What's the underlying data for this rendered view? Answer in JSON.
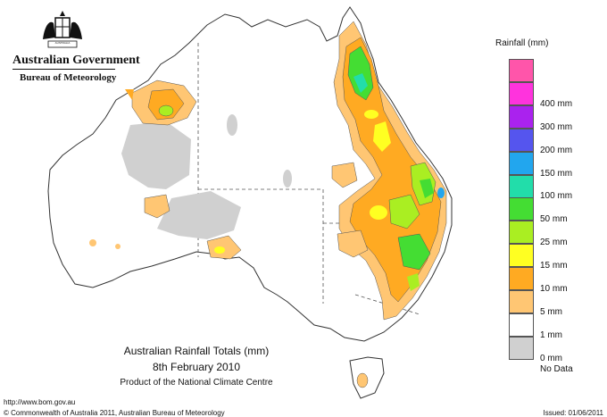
{
  "header": {
    "government": "Australian Government",
    "bureau": "Bureau of Meteorology",
    "crest_lettering": "AUSTRALIA"
  },
  "map_title": {
    "line1": "Australian Rainfall Totals (mm)",
    "line2": "8th February 2010",
    "line3": "Product of the National Climate Centre"
  },
  "legend": {
    "title": "Rainfall (mm)",
    "items": [
      {
        "label": "",
        "color": "#ff55aa"
      },
      {
        "label": "400 mm",
        "color": "#ff33dd"
      },
      {
        "label": "300 mm",
        "color": "#aa22ee"
      },
      {
        "label": "200 mm",
        "color": "#5555ee"
      },
      {
        "label": "150 mm",
        "color": "#22a6ee"
      },
      {
        "label": "100 mm",
        "color": "#22ddaa"
      },
      {
        "label": "50 mm",
        "color": "#44dd33"
      },
      {
        "label": "25 mm",
        "color": "#aaee22"
      },
      {
        "label": "15 mm",
        "color": "#ffff22"
      },
      {
        "label": "10 mm",
        "color": "#ffaa22"
      },
      {
        "label": "5 mm",
        "color": "#ffc673"
      },
      {
        "label": "1 mm",
        "color": "#ffffff"
      },
      {
        "label": "0 mm",
        "color": "#d0d0d0"
      }
    ],
    "no_data_label": "No Data"
  },
  "footer": {
    "url": "http://www.bom.gov.au",
    "copyright": "© Commonwealth of Australia 2011, Australian Bureau of Meteorology",
    "issued": "Issued: 01/06/2011"
  }
}
